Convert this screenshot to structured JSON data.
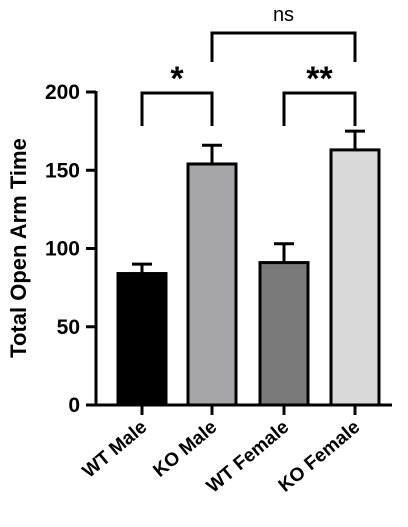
{
  "chart_data": {
    "type": "bar",
    "title": "",
    "xlabel": "",
    "ylabel": "Total Open Arm Time",
    "categories": [
      "WT Male",
      "KO Male",
      "WT Female",
      "KO Female"
    ],
    "values": [
      84,
      154,
      91,
      163
    ],
    "errors": [
      6,
      12,
      12,
      12
    ],
    "ylim": [
      0,
      200
    ],
    "yticks": [
      0,
      50,
      100,
      150,
      200
    ],
    "grid": false,
    "bar_colors": [
      "#000000",
      "#a6a6a8",
      "#7a7a7a",
      "#d9d9d9"
    ],
    "significance": [
      {
        "from": 0,
        "to": 1,
        "label": "*"
      },
      {
        "from": 2,
        "to": 3,
        "label": "**"
      },
      {
        "from": 1,
        "to": 3,
        "label": "ns"
      }
    ]
  }
}
